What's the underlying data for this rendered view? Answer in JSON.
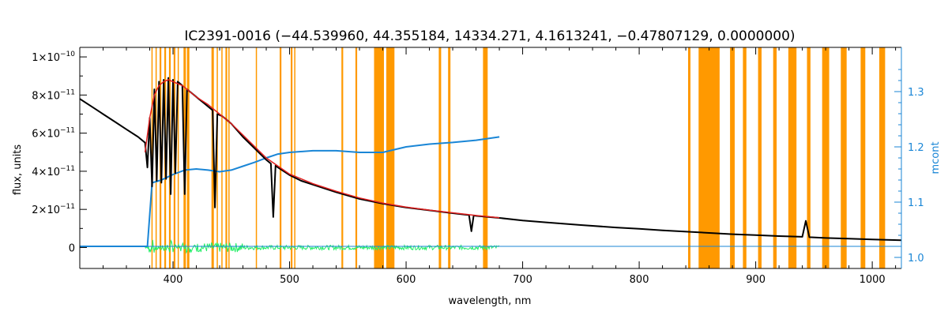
{
  "chart_data": {
    "type": "line",
    "title": "IC2391-0016   (−44.539960, 44.355184, 14334.271, 4.1613241, −0.47807129, 0.0000000)",
    "xlabel": "wavelength, nm",
    "ylabel": "flux, units",
    "ylabel_right": "mcont",
    "xlim": [
      320,
      1025
    ],
    "ylim": [
      -1.1e-11,
      1.05e-10
    ],
    "ylim_right": [
      0.98,
      1.38
    ],
    "x_ticks": [
      400,
      500,
      600,
      700,
      800,
      900,
      1000
    ],
    "x_tick_labels": [
      "400",
      "500",
      "600",
      "700",
      "800",
      "900",
      "1000"
    ],
    "y_ticks": [
      0,
      2e-11,
      4e-11,
      6e-11,
      8e-11,
      1e-10
    ],
    "y_tick_labels": [
      {
        "mant": "0",
        "exp": ""
      },
      {
        "mant": "2×10",
        "exp": "−11"
      },
      {
        "mant": "4×10",
        "exp": "−11"
      },
      {
        "mant": "6×10",
        "exp": "−11"
      },
      {
        "mant": "8×10",
        "exp": "−11"
      },
      {
        "mant": "1×10",
        "exp": "−10"
      }
    ],
    "y_ticks_right": [
      1.0,
      1.1,
      1.2,
      1.3
    ],
    "y_tick_labels_right": [
      "1.0",
      "1.1",
      "1.2",
      "1.3"
    ],
    "colors": {
      "observed": "#000000",
      "model": "#e02020",
      "continuum": "#1a86d6",
      "residual": "#22ee66",
      "mask": "#ff9900",
      "axis": "#000000",
      "axis_right": "#1a86d6"
    },
    "masks": [
      [
        381.5,
        382.5
      ],
      [
        385,
        386
      ],
      [
        388.5,
        390
      ],
      [
        392.5,
        394
      ],
      [
        396.5,
        398
      ],
      [
        400.5,
        402
      ],
      [
        404,
        405
      ],
      [
        409,
        411
      ],
      [
        412,
        414
      ],
      [
        433,
        435
      ],
      [
        437.5,
        438.5
      ],
      [
        441.5,
        442.5
      ],
      [
        445,
        446.5
      ],
      [
        447.5,
        448.5
      ],
      [
        471,
        472
      ],
      [
        491.5,
        493
      ],
      [
        501,
        502.5
      ],
      [
        504,
        505
      ],
      [
        544.5,
        546
      ],
      [
        556.5,
        558
      ],
      [
        572.5,
        581
      ],
      [
        583,
        590
      ],
      [
        628,
        630
      ],
      [
        636,
        638
      ],
      [
        666,
        670
      ],
      [
        842,
        844
      ],
      [
        851,
        869
      ],
      [
        878,
        882
      ],
      [
        889,
        892
      ],
      [
        902,
        905
      ],
      [
        915,
        918
      ],
      [
        928,
        935
      ],
      [
        944,
        947
      ],
      [
        957,
        963
      ],
      [
        973,
        978
      ],
      [
        990,
        994
      ],
      [
        1006,
        1011
      ]
    ],
    "observed": {
      "name": "",
      "x": [
        320,
        330,
        340,
        350,
        360,
        370,
        376,
        378,
        380,
        382,
        384,
        386,
        388,
        390,
        392,
        394,
        396,
        398,
        400,
        402,
        404,
        406,
        408,
        410,
        412,
        414,
        418,
        422,
        426,
        430,
        434,
        436,
        438,
        442,
        446,
        450,
        460,
        470,
        480,
        484,
        486,
        488,
        490,
        500,
        510,
        520,
        540,
        560,
        580,
        600,
        620,
        640,
        654,
        656,
        658,
        660,
        680,
        700,
        720,
        750,
        780,
        800,
        820,
        850,
        880,
        900,
        920,
        940,
        943,
        946,
        960,
        980,
        1000,
        1025
      ],
      "y": [
        7.8e-11,
        7.4e-11,
        7e-11,
        6.6e-11,
        6.2e-11,
        5.8e-11,
        5.5e-11,
        4.2e-11,
        6.8e-11,
        3.2e-11,
        8.3e-11,
        3.5e-11,
        8.7e-11,
        3.4e-11,
        8.8e-11,
        3.6e-11,
        8.9e-11,
        2.8e-11,
        8.8e-11,
        3.9e-11,
        8.7e-11,
        8.6e-11,
        8.5e-11,
        2.8e-11,
        8.3e-11,
        8.2e-11,
        8e-11,
        7.8e-11,
        7.6e-11,
        7.4e-11,
        7.2e-11,
        2.1e-11,
        7e-11,
        6.9e-11,
        6.7e-11,
        6.5e-11,
        5.8e-11,
        5.2e-11,
        4.6e-11,
        4.4e-11,
        1.6e-11,
        4.3e-11,
        4.2e-11,
        3.8e-11,
        3.5e-11,
        3.3e-11,
        2.9e-11,
        2.55e-11,
        2.3e-11,
        2.1e-11,
        1.95e-11,
        1.8e-11,
        1.7e-11,
        8.5e-12,
        1.68e-11,
        1.66e-11,
        1.55e-11,
        1.42e-11,
        1.32e-11,
        1.18e-11,
        1.05e-11,
        9.8e-12,
        9e-12,
        8e-12,
        7e-12,
        6.5e-12,
        6e-12,
        5.6e-12,
        1.4e-11,
        5.4e-12,
        5e-12,
        4.6e-12,
        4.2e-12,
        3.8e-12
      ]
    },
    "model": {
      "name": "",
      "x": [
        376,
        380,
        384,
        388,
        392,
        396,
        400,
        404,
        408,
        412,
        416,
        420,
        430,
        440,
        450,
        460,
        480,
        500,
        520,
        540,
        560,
        580,
        600,
        620,
        640,
        660,
        680
      ],
      "y": [
        5e-11,
        6.8e-11,
        8e-11,
        8.5e-11,
        8.7e-11,
        8.8e-11,
        8.7e-11,
        8.6e-11,
        8.5e-11,
        8.3e-11,
        8.1e-11,
        7.9e-11,
        7.5e-11,
        7e-11,
        6.5e-11,
        5.9e-11,
        4.7e-11,
        3.85e-11,
        3.35e-11,
        2.95e-11,
        2.6e-11,
        2.33e-11,
        2.12e-11,
        1.96e-11,
        1.82e-11,
        1.68e-11,
        1.56e-11
      ]
    },
    "continuum": {
      "name": "",
      "x": [
        320,
        360,
        378,
        382,
        390,
        400,
        410,
        420,
        430,
        440,
        450,
        460,
        470,
        480,
        490,
        500,
        520,
        540,
        560,
        580,
        600,
        620,
        640,
        660,
        680
      ],
      "y": [
        1.02,
        1.02,
        1.02,
        1.135,
        1.14,
        1.15,
        1.158,
        1.16,
        1.158,
        1.155,
        1.158,
        1.165,
        1.172,
        1.18,
        1.187,
        1.19,
        1.193,
        1.193,
        1.19,
        1.19,
        1.2,
        1.205,
        1.208,
        1.212,
        1.218
      ]
    },
    "continuum_tail": {
      "name": "",
      "x": [
        680,
        1025
      ],
      "y": [
        1.02,
        1.02
      ]
    },
    "residual": {
      "name": "",
      "x_start": 376,
      "x_end": 680,
      "y_baseline": 0
    }
  }
}
